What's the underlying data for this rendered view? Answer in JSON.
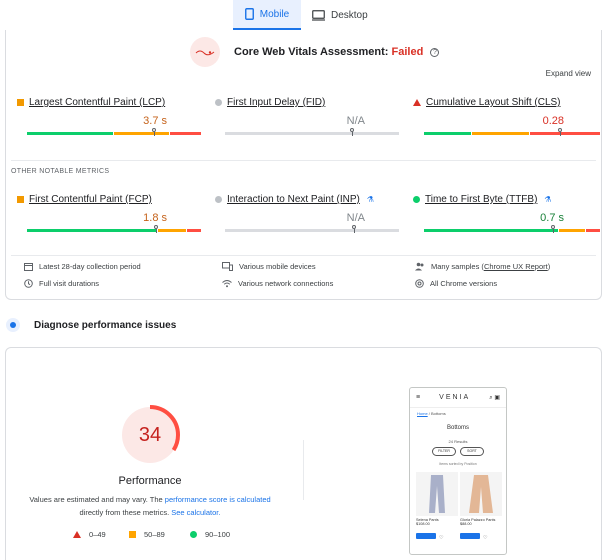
{
  "tabs": [
    {
      "label": "Mobile",
      "icon": "phone-icon",
      "active": true
    },
    {
      "label": "Desktop",
      "icon": "monitor-icon",
      "active": false
    }
  ],
  "assessment": {
    "title": "Core Web Vitals Assessment:",
    "status": "Failed",
    "expand_label": "Expand view"
  },
  "core_metrics": [
    {
      "name": "Largest Contentful Paint (LCP)",
      "value": "3.7 s",
      "indicator": "orange-square",
      "marker_fraction": 0.73
    },
    {
      "name": "First Input Delay (FID)",
      "value": "N/A",
      "indicator": "gray-dot",
      "marker_fraction": 0.73
    },
    {
      "name": "Cumulative Layout Shift (CLS)",
      "value": "0.28",
      "indicator": "red-triangle",
      "marker_fraction": 0.78
    }
  ],
  "other_section_label": "OTHER NOTABLE METRICS",
  "other_metrics": [
    {
      "name": "First Contentful Paint (FCP)",
      "value": "1.8 s",
      "indicator": "orange-square",
      "lab": false,
      "marker_fraction": 0.74
    },
    {
      "name": "Interaction to Next Paint (INP)",
      "value": "N/A",
      "indicator": "gray-dot",
      "lab": true,
      "marker_fraction": 0.74
    },
    {
      "name": "Time to First Byte (TTFB)",
      "value": "0.7 s",
      "indicator": "green-dot",
      "lab": true,
      "marker_fraction": 0.74
    }
  ],
  "info_items": [
    {
      "icon": "calendar-icon",
      "text": "Latest 28-day collection period"
    },
    {
      "icon": "devices-icon",
      "text": "Various mobile devices"
    },
    {
      "icon": "users-icon",
      "text": "Many samples (",
      "link": "Chrome UX Report",
      "suffix": ")"
    },
    {
      "icon": "clock-icon",
      "text": "Full visit durations"
    },
    {
      "icon": "wifi-icon",
      "text": "Various network connections"
    },
    {
      "icon": "chrome-icon",
      "text": "All Chrome versions"
    }
  ],
  "diagnose": {
    "title": "Diagnose performance issues"
  },
  "performance": {
    "score": "34",
    "score_value": 34,
    "label": "Performance",
    "note_prefix": "Values are estimated and may vary. The ",
    "note_link1": "performance score is calculated",
    "note_mid": "directly from these metrics. ",
    "note_link2": "See calculator.",
    "legend": [
      {
        "shape": "triangle",
        "label": "0–49"
      },
      {
        "shape": "square",
        "label": "50–89"
      },
      {
        "shape": "circle",
        "label": "90–100"
      }
    ]
  },
  "phone_preview": {
    "brand": "VENIA",
    "breadcrumb_home": "Home",
    "breadcrumb_current": "Bottoms",
    "title": "Bottoms",
    "results": "24 Results",
    "filter_label": "FILTER",
    "sort_label": "SORT",
    "sorted_by": "Items sorted by Position",
    "products": [
      {
        "name": "Selena Pants",
        "price": "$108.00"
      },
      {
        "name": "Gloria Palazzo Pants",
        "price": "$88.00"
      }
    ]
  },
  "colors": {
    "accent": "#1a73e8",
    "fail": "#d93025",
    "good": "#0cce6b",
    "average": "#ffa400",
    "poor": "#ff4e42"
  }
}
